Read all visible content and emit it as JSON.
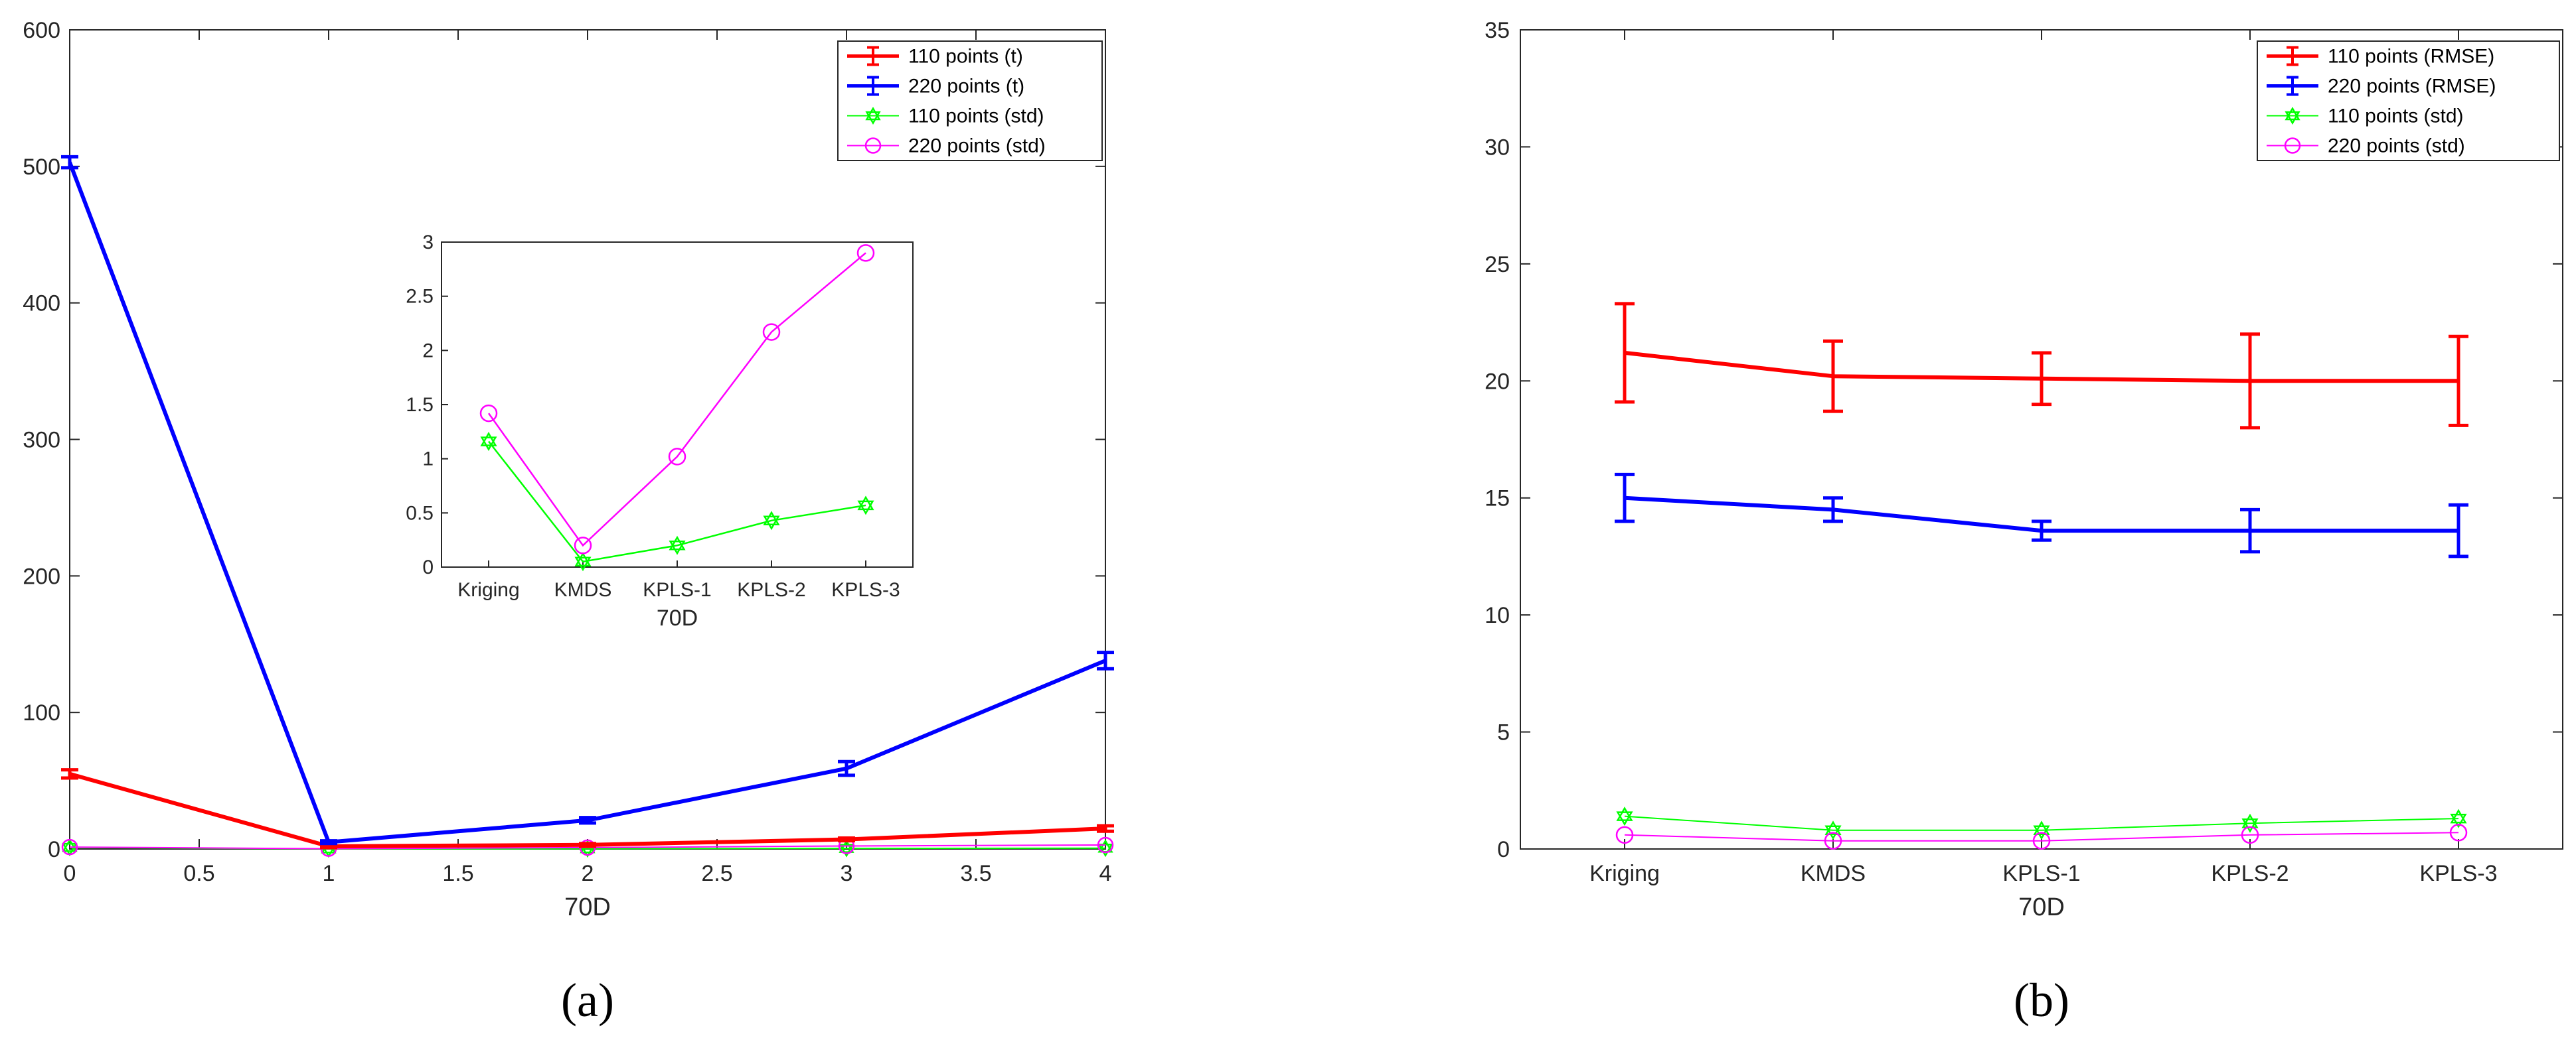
{
  "colors": {
    "red": "#ff0000",
    "blue": "#0000ff",
    "green": "#00ff00",
    "magenta": "#ff00ff",
    "axis": "#262626"
  },
  "chart_data": [
    {
      "id": "a",
      "type": "line",
      "panel_label": "(a)",
      "xlabel": "70D",
      "ylabel": "",
      "xlim": [
        0,
        4
      ],
      "ylim": [
        0,
        600
      ],
      "xticks": [
        0,
        0.5,
        1,
        1.5,
        2,
        2.5,
        3,
        3.5,
        4
      ],
      "xtick_labels": [
        "0",
        "0.5",
        "1",
        "1.5",
        "2",
        "2.5",
        "3",
        "3.5",
        "4"
      ],
      "yticks": [
        0,
        100,
        200,
        300,
        400,
        500,
        600
      ],
      "ytick_labels": [
        "0",
        "100",
        "200",
        "300",
        "400",
        "500",
        "600"
      ],
      "legend_position": "top-right",
      "x": [
        0,
        1,
        2,
        3,
        4
      ],
      "series": [
        {
          "name": "110 points (t)",
          "color": "#ff0000",
          "style": "errorbar",
          "values": [
            55,
            2,
            3,
            7,
            15
          ],
          "errors": [
            3,
            1,
            1,
            1,
            2
          ]
        },
        {
          "name": "220 points (t)",
          "color": "#0000ff",
          "style": "errorbar",
          "values": [
            503,
            5,
            21,
            59,
            138
          ],
          "errors": [
            4,
            1,
            2,
            5,
            6
          ]
        },
        {
          "name": "110 points (std)",
          "color": "#00ff00",
          "style": "hexagram",
          "values": [
            1.16,
            0.05,
            0.2,
            0.43,
            0.57
          ]
        },
        {
          "name": "220 points (std)",
          "color": "#ff00ff",
          "style": "circle",
          "values": [
            1.42,
            0.2,
            1.02,
            2.17,
            2.9
          ]
        }
      ],
      "inset": {
        "xlabel": "70D",
        "categories": [
          "Kriging",
          "KMDS",
          "KPLS-1",
          "KPLS-2",
          "KPLS-3"
        ],
        "ylim": [
          0,
          3
        ],
        "yticks": [
          0,
          0.5,
          1,
          1.5,
          2,
          2.5,
          3
        ],
        "ytick_labels": [
          "0",
          "0.5",
          "1",
          "1.5",
          "2",
          "2.5",
          "3"
        ],
        "series": [
          {
            "name": "110 points (std)",
            "color": "#00ff00",
            "style": "hexagram",
            "values": [
              1.16,
              0.05,
              0.2,
              0.43,
              0.57
            ]
          },
          {
            "name": "220 points (std)",
            "color": "#ff00ff",
            "style": "circle",
            "values": [
              1.42,
              0.2,
              1.02,
              2.17,
              2.9
            ]
          }
        ]
      }
    },
    {
      "id": "b",
      "type": "line",
      "panel_label": "(b)",
      "xlabel": "70D",
      "ylabel": "",
      "categories": [
        "Kriging",
        "KMDS",
        "KPLS-1",
        "KPLS-2",
        "KPLS-3"
      ],
      "ylim": [
        0,
        35
      ],
      "yticks": [
        0,
        5,
        10,
        15,
        20,
        25,
        30,
        35
      ],
      "ytick_labels": [
        "0",
        "5",
        "10",
        "15",
        "20",
        "25",
        "30",
        "35"
      ],
      "legend_position": "top-right",
      "series": [
        {
          "name": "110 points (RMSE)",
          "color": "#ff0000",
          "style": "errorbar",
          "values": [
            21.2,
            20.2,
            20.1,
            20.0,
            20.0
          ],
          "errors": [
            2.1,
            1.5,
            1.1,
            2.0,
            1.9
          ]
        },
        {
          "name": "220 points (RMSE)",
          "color": "#0000ff",
          "style": "errorbar",
          "values": [
            15.0,
            14.5,
            13.6,
            13.6,
            13.6
          ],
          "errors": [
            1.0,
            0.5,
            0.4,
            0.9,
            1.1
          ]
        },
        {
          "name": "110 points (std)",
          "color": "#00ff00",
          "style": "hexagram",
          "values": [
            1.4,
            0.8,
            0.8,
            1.1,
            1.3
          ]
        },
        {
          "name": "220 points (std)",
          "color": "#ff00ff",
          "style": "circle",
          "values": [
            0.6,
            0.35,
            0.35,
            0.6,
            0.7
          ]
        }
      ]
    }
  ]
}
